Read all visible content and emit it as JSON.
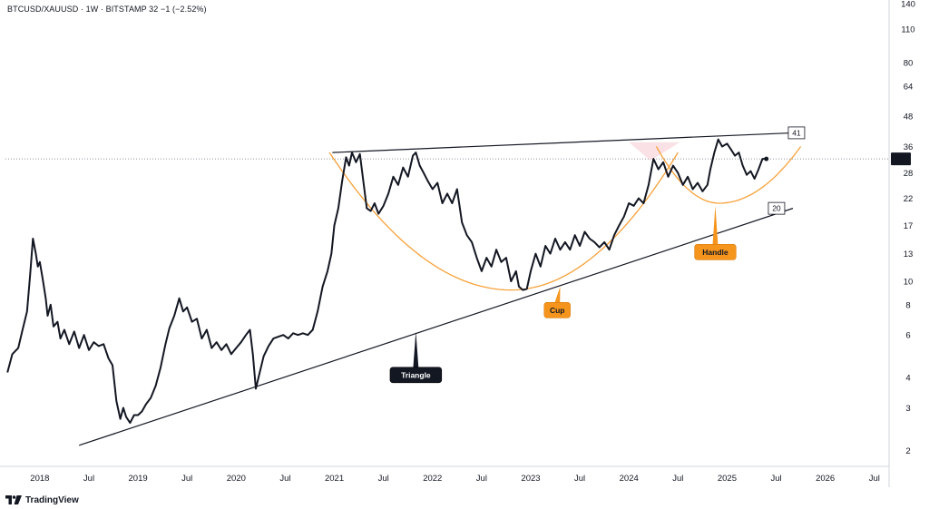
{
  "header": {
    "ticker_line": "BTCUSD/XAUUSD · 1W · BITSTAMP  32  −1 (−2.52%)"
  },
  "footer": {
    "brand": "TradingView"
  },
  "price_axis": {
    "current_price_label": "32"
  },
  "colors": {
    "price_line": "#131722",
    "trend_line": "#131722",
    "cup_handle_curve": "#f7a13a",
    "cup_callout": "#f5951d",
    "triangle_callout": "#131722",
    "handle_fill": "#f8d7dc",
    "axis_border": "#d1d4dc"
  },
  "chart_data": {
    "type": "line",
    "series": [
      {
        "values_t": [
          2017.67,
          2017.72,
          2017.78,
          2017.82,
          2017.87,
          2017.9,
          2017.93,
          2017.96,
          2017.98,
          2018.0,
          2018.03,
          2018.06,
          2018.08,
          2018.11,
          2018.14,
          2018.18,
          2018.21,
          2018.25,
          2018.3,
          2018.35,
          2018.4,
          2018.45,
          2018.5,
          2018.55,
          2018.6,
          2018.65,
          2018.7,
          2018.74,
          2018.78,
          2018.82,
          2018.85,
          2018.88,
          2018.92,
          2018.96,
          2019.0,
          2019.04,
          2019.08,
          2019.13,
          2019.18,
          2019.23,
          2019.28,
          2019.32,
          2019.37,
          2019.42,
          2019.46,
          2019.5,
          2019.55,
          2019.6,
          2019.65,
          2019.7,
          2019.75,
          2019.8,
          2019.85,
          2019.9,
          2019.95,
          2020.0,
          2020.05,
          2020.1,
          2020.14,
          2020.17,
          2020.2,
          2020.24,
          2020.28,
          2020.33,
          2020.38,
          2020.43,
          2020.48,
          2020.53,
          2020.58,
          2020.63,
          2020.68,
          2020.73,
          2020.78,
          2020.83,
          2020.88,
          2020.93,
          2020.97,
          2021.0,
          2021.04,
          2021.08,
          2021.12,
          2021.15,
          2021.18,
          2021.22,
          2021.26,
          2021.3,
          2021.33,
          2021.37,
          2021.41,
          2021.45,
          2021.5,
          2021.55,
          2021.6,
          2021.65,
          2021.7,
          2021.75,
          2021.8,
          2021.83,
          2021.87,
          2021.91,
          2021.95,
          2022.0,
          2022.05,
          2022.1,
          2022.15,
          2022.2,
          2022.25,
          2022.3,
          2022.35,
          2022.4,
          2022.45,
          2022.5,
          2022.55,
          2022.6,
          2022.65,
          2022.7,
          2022.75,
          2022.8,
          2022.85,
          2022.88,
          2022.92,
          2022.96,
          2023.0,
          2023.05,
          2023.1,
          2023.15,
          2023.2,
          2023.25,
          2023.3,
          2023.35,
          2023.4,
          2023.45,
          2023.5,
          2023.55,
          2023.6,
          2023.65,
          2023.7,
          2023.75,
          2023.8,
          2023.85,
          2023.9,
          2023.95,
          2024.0,
          2024.05,
          2024.1,
          2024.15,
          2024.2,
          2024.25,
          2024.3,
          2024.35,
          2024.4,
          2024.45,
          2024.5,
          2024.55,
          2024.6,
          2024.65,
          2024.7,
          2024.75,
          2024.8,
          2024.83,
          2024.87,
          2024.91,
          2024.95,
          2025.0,
          2025.04,
          2025.08,
          2025.12,
          2025.16,
          2025.2,
          2025.24,
          2025.28,
          2025.32,
          2025.36,
          2025.4
        ],
        "values": [
          4.2,
          5.0,
          5.3,
          6.2,
          7.5,
          10.5,
          15.0,
          13.0,
          11.5,
          12.0,
          10.2,
          8.5,
          7.2,
          8.0,
          6.5,
          6.8,
          5.8,
          6.3,
          5.5,
          6.2,
          5.3,
          6.0,
          5.2,
          5.6,
          5.4,
          5.5,
          4.8,
          4.5,
          3.2,
          2.7,
          3.0,
          2.75,
          2.6,
          2.8,
          2.8,
          2.9,
          3.1,
          3.3,
          3.7,
          4.4,
          5.5,
          6.4,
          7.2,
          8.5,
          7.5,
          7.8,
          6.8,
          7.0,
          5.8,
          6.3,
          5.3,
          5.6,
          5.2,
          5.5,
          5.0,
          5.3,
          5.6,
          6.0,
          6.3,
          5.0,
          3.6,
          4.2,
          4.9,
          5.4,
          5.8,
          5.9,
          6.0,
          5.8,
          6.1,
          6.0,
          6.1,
          6.0,
          6.3,
          7.5,
          9.5,
          11.0,
          13.0,
          17.0,
          20.0,
          26.0,
          32.5,
          30.0,
          34.0,
          31.0,
          33.5,
          25.0,
          20.0,
          19.5,
          21.0,
          19.0,
          20.5,
          23.0,
          27.0,
          25.0,
          29.5,
          27.0,
          33.0,
          34.0,
          30.0,
          28.0,
          26.0,
          24.0,
          25.5,
          21.0,
          23.0,
          21.0,
          24.0,
          17.5,
          15.5,
          14.5,
          12.5,
          11.0,
          12.5,
          11.5,
          13.5,
          12.0,
          12.5,
          10.0,
          11.0,
          9.5,
          9.2,
          9.3,
          11.0,
          13.0,
          11.5,
          14.0,
          13.0,
          15.0,
          13.5,
          14.5,
          13.5,
          15.5,
          14.0,
          16.0,
          15.0,
          14.5,
          13.8,
          14.5,
          13.5,
          15.5,
          17.0,
          18.5,
          21.0,
          20.5,
          22.0,
          21.0,
          25.0,
          32.0,
          29.0,
          31.0,
          27.0,
          30.0,
          28.0,
          25.0,
          27.0,
          24.0,
          25.5,
          23.5,
          25.0,
          29.0,
          34.0,
          38.5,
          36.0,
          37.0,
          35.0,
          33.0,
          34.0,
          30.0,
          27.5,
          28.5,
          26.5,
          29.0,
          32.0,
          32.0
        ]
      }
    ],
    "y_scale": "log",
    "ylim": [
      1.75,
      145
    ],
    "xlim": [
      2017.65,
      2026.65
    ],
    "y_tick_labels": [
      "2",
      "3",
      "4",
      "6",
      "8",
      "10",
      "13",
      "17",
      "22",
      "28",
      "36",
      "48",
      "64",
      "80",
      "110",
      "140"
    ],
    "y_tick_values": [
      2,
      3,
      4,
      6,
      8,
      10,
      13,
      17,
      22,
      28,
      36,
      48,
      64,
      80,
      110,
      140
    ],
    "x_tick_labels": [
      "2018",
      "Jul",
      "2019",
      "Jul",
      "2020",
      "Jul",
      "2021",
      "Jul",
      "2022",
      "Jul",
      "2023",
      "Jul",
      "2024",
      "Jul",
      "2025",
      "Jul",
      "2026",
      "Jul"
    ],
    "x_tick_values": [
      2018.0,
      2018.5,
      2019.0,
      2019.5,
      2020.0,
      2020.5,
      2021.0,
      2021.5,
      2022.0,
      2022.5,
      2023.0,
      2023.5,
      2024.0,
      2024.5,
      2025.0,
      2025.5,
      2026.0,
      2026.5
    ],
    "last_value": 32,
    "grid": false,
    "trend_lines": [
      {
        "name": "upper",
        "t1": 2020.98,
        "v1": 34.0,
        "t2": 2025.67,
        "v2": 41.0,
        "end_label": "41"
      },
      {
        "name": "lower",
        "t1": 2018.4,
        "v1": 2.1,
        "t2": 2025.67,
        "v2": 20.0,
        "end_label": "20"
      }
    ],
    "annotations": [
      {
        "text": "Triangle",
        "t": 2021.83,
        "v": 4.1,
        "tip_t": 2021.83,
        "tip_v": 6.2
      },
      {
        "text": "Cup",
        "t": 2023.27,
        "v": 7.6,
        "tip_t": 2023.3,
        "tip_v": 9.5
      },
      {
        "text": "Handle",
        "t": 2024.88,
        "v": 13.2,
        "tip_t": 2024.88,
        "tip_v": 20.5
      }
    ],
    "cup_curve": {
      "t_start": 2020.95,
      "t_bottom": 2022.8,
      "t_end": 2024.5,
      "v_rim": 34.0,
      "v_bottom": 9.2
    },
    "handle_curve": {
      "t_start": 2024.28,
      "t_bottom": 2024.92,
      "t_end": 2025.75,
      "v_rim": 36.0,
      "v_bottom": 21.0
    }
  }
}
